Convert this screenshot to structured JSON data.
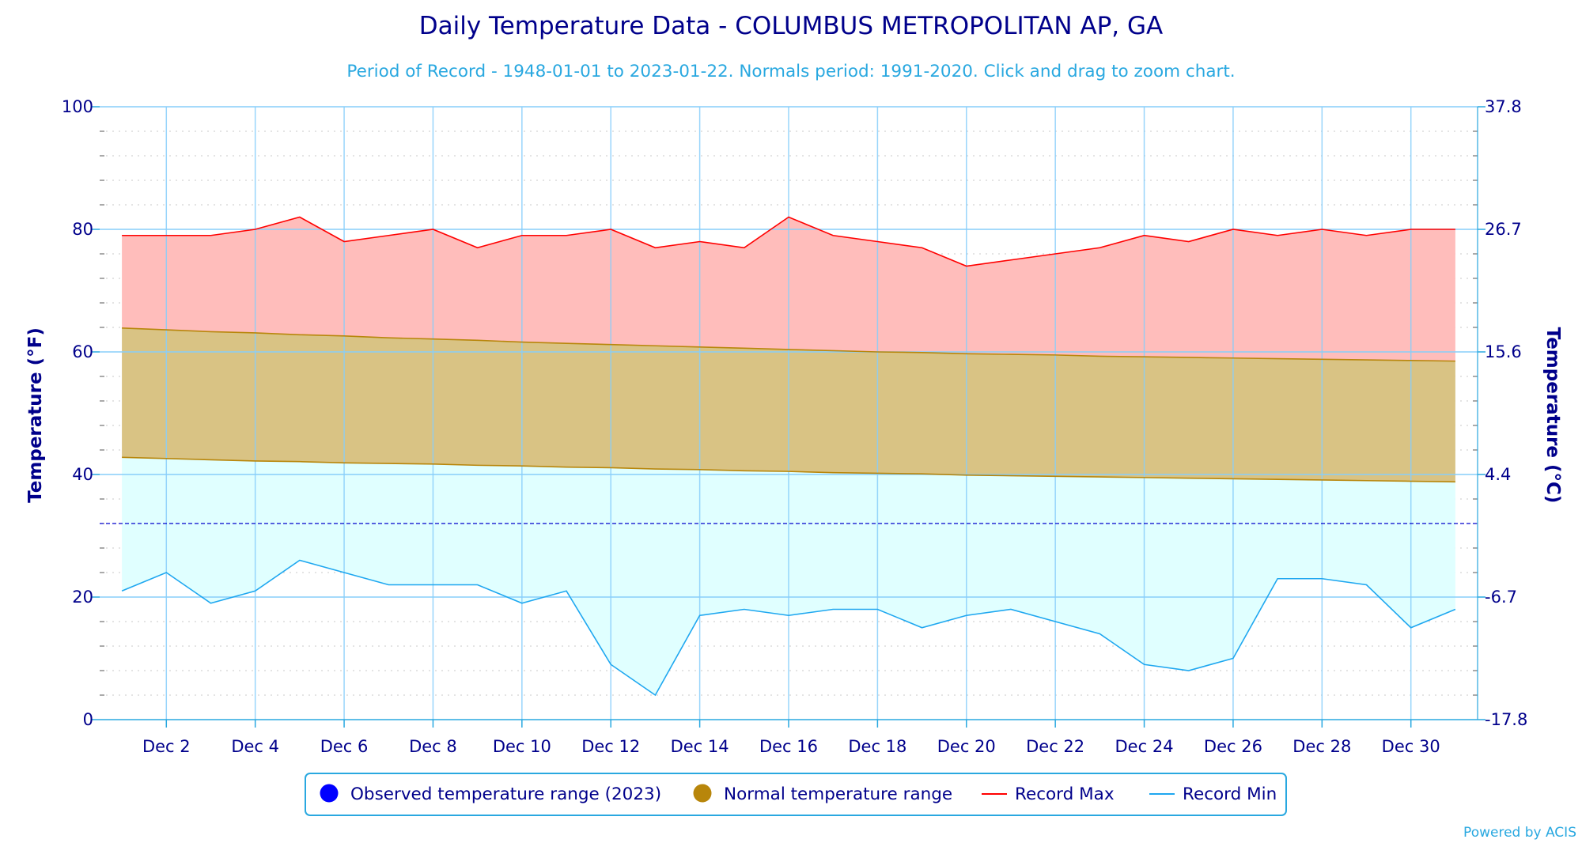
{
  "header": {
    "title": "Daily Temperature Data - COLUMBUS METROPOLITAN AP, GA",
    "subtitle": "Period of Record - 1948-01-01 to 2023-01-22. Normals period: 1991-2020. Click and drag to zoom chart."
  },
  "credit": "Powered by ACIS",
  "colors": {
    "record_max_line": "#ff0000",
    "record_max_fill": "#ffbdbb",
    "normal_fill": "#d9c384",
    "normal_line": "#b8860b",
    "record_min_line": "#1ea7f0",
    "record_min_fill": "#e0ffff",
    "observed": "#0000ff",
    "freezing_line": "#0000cc",
    "grid": "#87cefa",
    "text": "#00008b"
  },
  "chart_data": {
    "type": "area",
    "xlabel": "",
    "ylabel": "Temperature (°F)",
    "ylabel_right": "Temperature (°C)",
    "ylim": [
      0,
      100
    ],
    "x_days": [
      1,
      2,
      3,
      4,
      5,
      6,
      7,
      8,
      9,
      10,
      11,
      12,
      13,
      14,
      15,
      16,
      17,
      18,
      19,
      20,
      21,
      22,
      23,
      24,
      25,
      26,
      27,
      28,
      29,
      30,
      31
    ],
    "x_tick_labels": [
      "Dec 2",
      "Dec 4",
      "Dec 6",
      "Dec 8",
      "Dec 10",
      "Dec 12",
      "Dec 14",
      "Dec 16",
      "Dec 18",
      "Dec 20",
      "Dec 22",
      "Dec 24",
      "Dec 26",
      "Dec 28",
      "Dec 30"
    ],
    "x_tick_days": [
      2,
      4,
      6,
      8,
      10,
      12,
      14,
      16,
      18,
      20,
      22,
      24,
      26,
      28,
      30
    ],
    "y_ticks_left": [
      "0",
      "20",
      "40",
      "60",
      "80",
      "100"
    ],
    "y_ticks_left_values": [
      0,
      20,
      40,
      60,
      80,
      100
    ],
    "y_ticks_right": [
      "-17.8",
      "-6.7",
      "4.4",
      "15.6",
      "26.7",
      "37.8"
    ],
    "freezing_line": 32,
    "grid": true,
    "legend_position": "bottom-center",
    "series": [
      {
        "name": "Observed temperature range (2023)",
        "values": []
      },
      {
        "name": "Normal temperature range",
        "high": [
          63.9,
          63.6,
          63.3,
          63.1,
          62.8,
          62.6,
          62.3,
          62.1,
          61.9,
          61.6,
          61.4,
          61.2,
          61.0,
          60.8,
          60.6,
          60.4,
          60.2,
          60.0,
          59.9,
          59.7,
          59.6,
          59.5,
          59.3,
          59.2,
          59.1,
          59.0,
          58.9,
          58.8,
          58.7,
          58.6,
          58.5
        ],
        "low": [
          42.8,
          42.6,
          42.4,
          42.2,
          42.1,
          41.9,
          41.8,
          41.7,
          41.5,
          41.4,
          41.2,
          41.1,
          40.9,
          40.8,
          40.6,
          40.5,
          40.3,
          40.2,
          40.1,
          39.9,
          39.8,
          39.7,
          39.6,
          39.5,
          39.4,
          39.3,
          39.2,
          39.1,
          39.0,
          38.9,
          38.8
        ]
      },
      {
        "name": "Record Max",
        "values": [
          79,
          79,
          79,
          80,
          82,
          78,
          79,
          80,
          77,
          79,
          79,
          80,
          77,
          78,
          77,
          82,
          79,
          78,
          77,
          74,
          75,
          76,
          77,
          79,
          78,
          80,
          79,
          80,
          79,
          80,
          80
        ]
      },
      {
        "name": "Record Min",
        "values": [
          21,
          24,
          19,
          21,
          26,
          24,
          22,
          22,
          22,
          19,
          21,
          9,
          4,
          17,
          18,
          17,
          18,
          18,
          15,
          17,
          18,
          16,
          14,
          9,
          8,
          10,
          23,
          23,
          22,
          15,
          18
        ]
      }
    ]
  }
}
